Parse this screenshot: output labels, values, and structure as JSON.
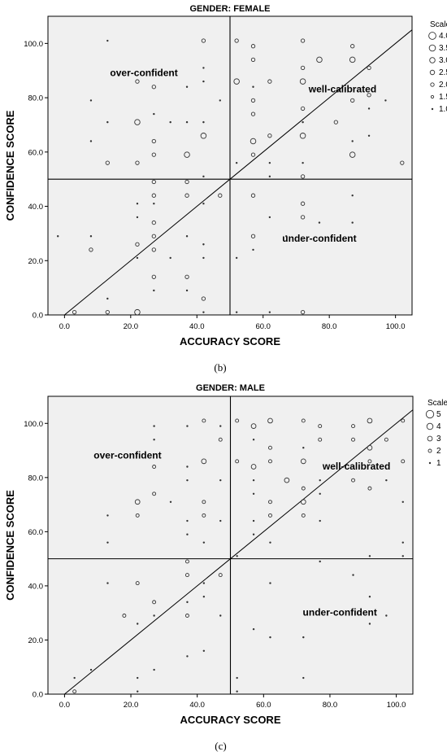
{
  "charts": [
    {
      "type": "scatter",
      "title": "GENDER: FEMALE",
      "xlabel": "ACCURACY SCORE",
      "ylabel": "CONFIDENCE SCORE",
      "caption": "(b)",
      "xlim": [
        -5,
        105
      ],
      "ylim": [
        0,
        110
      ],
      "xticks": [
        "0.0",
        "20.0",
        "40.0",
        "60.0",
        "80.0",
        "100.0"
      ],
      "yticks": [
        "0.0",
        "20.0",
        "40.0",
        "60.0",
        "80.0",
        "100.0"
      ],
      "xtick_values": [
        0,
        20,
        40,
        60,
        80,
        100
      ],
      "ytick_values": [
        0,
        20,
        40,
        60,
        80,
        100
      ],
      "reference_lines": {
        "vertical_x": 50,
        "horizontal_y": 50,
        "diagonal": true
      },
      "annotations": [
        {
          "text": "over-confident",
          "x": 24,
          "y": 88
        },
        {
          "text": "well-calibrated",
          "x": 84,
          "y": 82
        },
        {
          "text": "under-confident",
          "x": 77,
          "y": 27
        }
      ],
      "legend": {
        "title": "Scale",
        "items": [
          "4.0",
          "3.5",
          "3.0",
          "2.5",
          "2.0",
          "1.5",
          "1.0"
        ],
        "sizes": [
          4.0,
          3.5,
          3.0,
          2.5,
          2.0,
          1.5,
          1.0
        ],
        "placement": "right"
      },
      "points": [
        [
          -2,
          29,
          1
        ],
        [
          3,
          1,
          2
        ],
        [
          8,
          29,
          1
        ],
        [
          8,
          24,
          2
        ],
        [
          8,
          64,
          1
        ],
        [
          8,
          79,
          1
        ],
        [
          13,
          1,
          2
        ],
        [
          13,
          6,
          1
        ],
        [
          13,
          56,
          2
        ],
        [
          13,
          71,
          1
        ],
        [
          13,
          101,
          1
        ],
        [
          22,
          1,
          3
        ],
        [
          22,
          21,
          1
        ],
        [
          22,
          26,
          2
        ],
        [
          22,
          36,
          1
        ],
        [
          22,
          41,
          1
        ],
        [
          22,
          56,
          2
        ],
        [
          22,
          71,
          3
        ],
        [
          22,
          86,
          2
        ],
        [
          27,
          9,
          1
        ],
        [
          27,
          14,
          2
        ],
        [
          27,
          24,
          2
        ],
        [
          27,
          29,
          2
        ],
        [
          27,
          34,
          2
        ],
        [
          27,
          41,
          1
        ],
        [
          27,
          44,
          2
        ],
        [
          27,
          49,
          2
        ],
        [
          27,
          59,
          2
        ],
        [
          27,
          64,
          2
        ],
        [
          27,
          74,
          1
        ],
        [
          27,
          84,
          2
        ],
        [
          32,
          21,
          1
        ],
        [
          32,
          71,
          1
        ],
        [
          37,
          9,
          1
        ],
        [
          37,
          14,
          2
        ],
        [
          37,
          29,
          1
        ],
        [
          37,
          44,
          2
        ],
        [
          37,
          49,
          2
        ],
        [
          37,
          59,
          3
        ],
        [
          37,
          71,
          1
        ],
        [
          37,
          84,
          1
        ],
        [
          42,
          1,
          1
        ],
        [
          42,
          6,
          2
        ],
        [
          42,
          21,
          1
        ],
        [
          42,
          26,
          1
        ],
        [
          42,
          41,
          1
        ],
        [
          42,
          51,
          1
        ],
        [
          42,
          66,
          3
        ],
        [
          42,
          71,
          1
        ],
        [
          42,
          86,
          1
        ],
        [
          42,
          91,
          1
        ],
        [
          42,
          101,
          2
        ],
        [
          47,
          44,
          2
        ],
        [
          47,
          79,
          1
        ],
        [
          52,
          1,
          1
        ],
        [
          52,
          21,
          1
        ],
        [
          52,
          56,
          1
        ],
        [
          52,
          86,
          3
        ],
        [
          52,
          101,
          2
        ],
        [
          57,
          24,
          1
        ],
        [
          57,
          29,
          2
        ],
        [
          57,
          44,
          2
        ],
        [
          57,
          59,
          2
        ],
        [
          57,
          64,
          3
        ],
        [
          57,
          74,
          2
        ],
        [
          57,
          79,
          2
        ],
        [
          57,
          84,
          1
        ],
        [
          57,
          94,
          2
        ],
        [
          57,
          99,
          2
        ],
        [
          62,
          1,
          1
        ],
        [
          62,
          36,
          1
        ],
        [
          62,
          51,
          1
        ],
        [
          62,
          56,
          1
        ],
        [
          62,
          66,
          2
        ],
        [
          62,
          86,
          2
        ],
        [
          67,
          29,
          1
        ],
        [
          72,
          1,
          2
        ],
        [
          72,
          36,
          2
        ],
        [
          72,
          41,
          2
        ],
        [
          72,
          51,
          2
        ],
        [
          72,
          56,
          1
        ],
        [
          72,
          66,
          3
        ],
        [
          72,
          71,
          1
        ],
        [
          72,
          76,
          2
        ],
        [
          72,
          86,
          3
        ],
        [
          72,
          91,
          2
        ],
        [
          72,
          101,
          2
        ],
        [
          77,
          34,
          1
        ],
        [
          77,
          94,
          3
        ],
        [
          82,
          71,
          2
        ],
        [
          87,
          34,
          1
        ],
        [
          87,
          44,
          1
        ],
        [
          87,
          59,
          3
        ],
        [
          87,
          64,
          1
        ],
        [
          87,
          79,
          2
        ],
        [
          87,
          94,
          3
        ],
        [
          87,
          99,
          2
        ],
        [
          92,
          66,
          1
        ],
        [
          92,
          76,
          1
        ],
        [
          92,
          81,
          2
        ],
        [
          92,
          91,
          2
        ],
        [
          97,
          79,
          1
        ],
        [
          102,
          56,
          2
        ]
      ]
    },
    {
      "type": "scatter",
      "title": "GENDER: MALE",
      "xlabel": "ACCURACY SCORE",
      "ylabel": "CONFIDENCE SCORE",
      "caption": "(c)",
      "xlim": [
        -5,
        105
      ],
      "ylim": [
        0,
        110
      ],
      "xticks": [
        "0.0",
        "20.0",
        "40.0",
        "60.0",
        "80.0",
        "100.0"
      ],
      "yticks": [
        "0.0",
        "20.0",
        "40.0",
        "60.0",
        "80.0",
        "100.0"
      ],
      "xtick_values": [
        0,
        20,
        40,
        60,
        80,
        100
      ],
      "ytick_values": [
        0,
        20,
        40,
        60,
        80,
        100
      ],
      "reference_lines": {
        "vertical_x": 50,
        "horizontal_y": 50,
        "diagonal": true
      },
      "annotations": [
        {
          "text": "over-confident",
          "x": 19,
          "y": 87
        },
        {
          "text": "well-calibrated",
          "x": 88,
          "y": 83
        },
        {
          "text": "under-confident",
          "x": 83,
          "y": 29
        }
      ],
      "legend": {
        "title": "Scale",
        "items": [
          "5",
          "4",
          "3",
          "2",
          "1"
        ],
        "sizes": [
          5,
          4,
          3,
          2,
          1
        ],
        "placement": "right"
      },
      "points": [
        [
          3,
          1,
          2
        ],
        [
          3,
          6,
          1
        ],
        [
          8,
          9,
          1
        ],
        [
          13,
          41,
          1
        ],
        [
          13,
          56,
          1
        ],
        [
          13,
          66,
          1
        ],
        [
          18,
          29,
          2
        ],
        [
          22,
          1,
          1
        ],
        [
          22,
          6,
          1
        ],
        [
          22,
          26,
          1
        ],
        [
          22,
          41,
          2
        ],
        [
          22,
          66,
          2
        ],
        [
          22,
          71,
          3
        ],
        [
          27,
          9,
          1
        ],
        [
          27,
          29,
          1
        ],
        [
          27,
          34,
          2
        ],
        [
          27,
          74,
          2
        ],
        [
          27,
          84,
          2
        ],
        [
          27,
          94,
          1
        ],
        [
          27,
          99,
          1
        ],
        [
          32,
          71,
          1
        ],
        [
          37,
          14,
          1
        ],
        [
          37,
          29,
          2
        ],
        [
          37,
          34,
          1
        ],
        [
          37,
          44,
          2
        ],
        [
          37,
          49,
          2
        ],
        [
          37,
          59,
          1
        ],
        [
          37,
          64,
          1
        ],
        [
          37,
          79,
          1
        ],
        [
          37,
          84,
          1
        ],
        [
          37,
          99,
          1
        ],
        [
          42,
          16,
          1
        ],
        [
          42,
          36,
          1
        ],
        [
          42,
          41,
          1
        ],
        [
          42,
          56,
          1
        ],
        [
          42,
          66,
          2
        ],
        [
          42,
          71,
          2
        ],
        [
          42,
          86,
          3
        ],
        [
          42,
          101,
          2
        ],
        [
          47,
          29,
          1
        ],
        [
          47,
          44,
          2
        ],
        [
          47,
          64,
          1
        ],
        [
          47,
          79,
          1
        ],
        [
          47,
          94,
          2
        ],
        [
          47,
          99,
          1
        ],
        [
          52,
          1,
          1
        ],
        [
          52,
          6,
          1
        ],
        [
          52,
          51,
          1
        ],
        [
          52,
          86,
          2
        ],
        [
          52,
          101,
          2
        ],
        [
          57,
          24,
          1
        ],
        [
          57,
          59,
          1
        ],
        [
          57,
          64,
          1
        ],
        [
          57,
          74,
          1
        ],
        [
          57,
          79,
          1
        ],
        [
          57,
          84,
          3
        ],
        [
          57,
          94,
          1
        ],
        [
          57,
          99,
          3
        ],
        [
          62,
          21,
          1
        ],
        [
          62,
          41,
          1
        ],
        [
          62,
          56,
          1
        ],
        [
          62,
          66,
          2
        ],
        [
          62,
          71,
          2
        ],
        [
          62,
          86,
          2
        ],
        [
          62,
          91,
          2
        ],
        [
          62,
          101,
          3
        ],
        [
          67,
          79,
          3
        ],
        [
          72,
          6,
          1
        ],
        [
          72,
          21,
          1
        ],
        [
          72,
          66,
          2
        ],
        [
          72,
          71,
          3
        ],
        [
          72,
          76,
          2
        ],
        [
          72,
          86,
          3
        ],
        [
          72,
          91,
          1
        ],
        [
          72,
          101,
          2
        ],
        [
          77,
          49,
          1
        ],
        [
          77,
          64,
          1
        ],
        [
          77,
          74,
          1
        ],
        [
          77,
          79,
          1
        ],
        [
          77,
          94,
          2
        ],
        [
          77,
          99,
          2
        ],
        [
          87,
          44,
          1
        ],
        [
          87,
          79,
          2
        ],
        [
          87,
          94,
          2
        ],
        [
          87,
          99,
          2
        ],
        [
          92,
          26,
          1
        ],
        [
          92,
          36,
          1
        ],
        [
          92,
          51,
          1
        ],
        [
          92,
          76,
          2
        ],
        [
          92,
          86,
          2
        ],
        [
          92,
          91,
          3
        ],
        [
          92,
          101,
          3
        ],
        [
          97,
          29,
          1
        ],
        [
          97,
          79,
          1
        ],
        [
          97,
          94,
          2
        ],
        [
          102,
          51,
          1
        ],
        [
          102,
          56,
          1
        ],
        [
          102,
          71,
          1
        ],
        [
          102,
          86,
          2
        ],
        [
          102,
          101,
          2
        ]
      ]
    }
  ]
}
